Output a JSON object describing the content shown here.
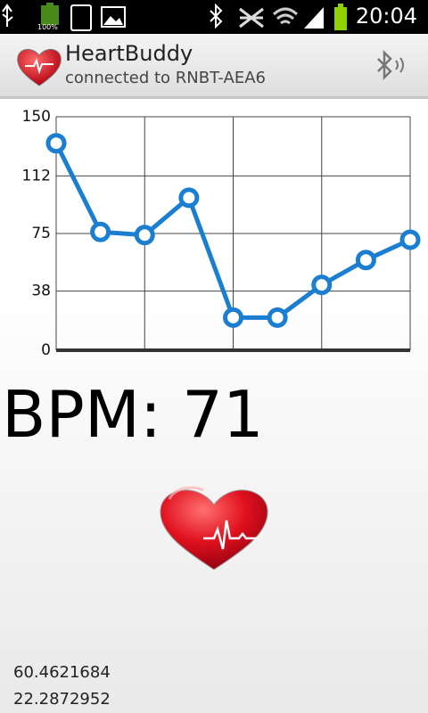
{
  "status_bar": {
    "battery_label": "100%",
    "time": "20:04"
  },
  "app_bar": {
    "title": "HeartBuddy",
    "subtitle": "connected to RNBT-AEA6"
  },
  "chart_data": {
    "type": "line",
    "categories": [
      null,
      null,
      null,
      null,
      null,
      null,
      null,
      null,
      null
    ],
    "series": [
      {
        "name": "BPM",
        "color": "#1b7ed0",
        "values": [
          133,
          76,
          74,
          98,
          21,
          21,
          42,
          58,
          71
        ]
      }
    ],
    "ylim": [
      0,
      150
    ],
    "yticks": [
      0,
      38,
      75,
      112,
      150
    ],
    "grid": true
  },
  "bpm_label": "BPM: 71",
  "location": {
    "latitude": "60.4621684",
    "longitude": "22.2872952"
  }
}
